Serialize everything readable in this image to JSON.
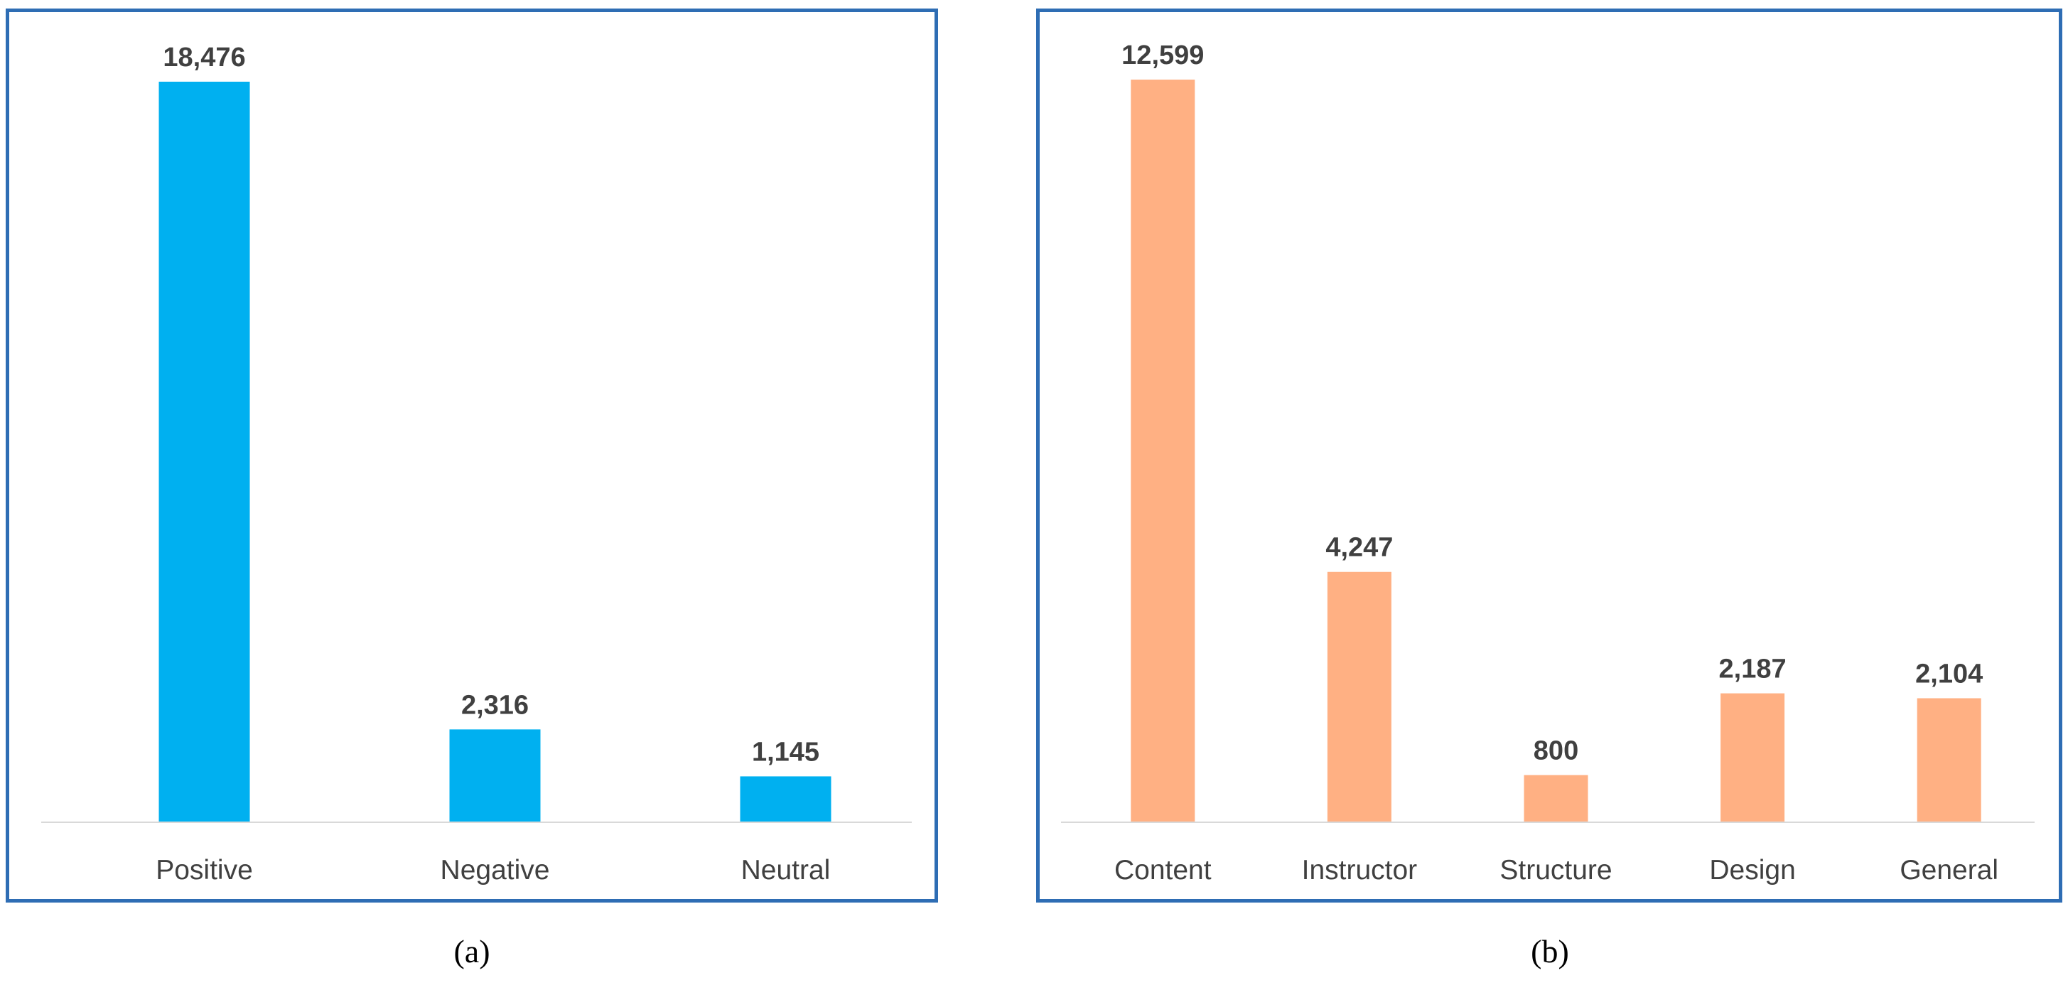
{
  "chart_data": [
    {
      "type": "bar",
      "categories": [
        "Positive",
        "Negative",
        "Neutral"
      ],
      "values": [
        18476,
        2316,
        1145
      ],
      "data_labels": [
        "18,476",
        "2,316",
        "1,145"
      ],
      "ylim": [
        0,
        20000
      ],
      "grid": false,
      "legend": "none",
      "bar_color": "#00b0f0",
      "caption": "(a)"
    },
    {
      "type": "bar",
      "categories": [
        "Content",
        "Instructor",
        "Structure",
        "Design",
        "General"
      ],
      "values": [
        12599,
        4247,
        800,
        2187,
        2104
      ],
      "data_labels": [
        "12,599",
        "4,247",
        "800",
        "2,187",
        "2,104"
      ],
      "ylim": [
        0,
        13600
      ],
      "grid": false,
      "legend": "none",
      "bar_color": "#ffb083",
      "caption": "(b)"
    }
  ],
  "colors": {
    "panel_border": "#2e6db4",
    "axis_line": "#d9d9d9",
    "label_text": "#404040"
  }
}
